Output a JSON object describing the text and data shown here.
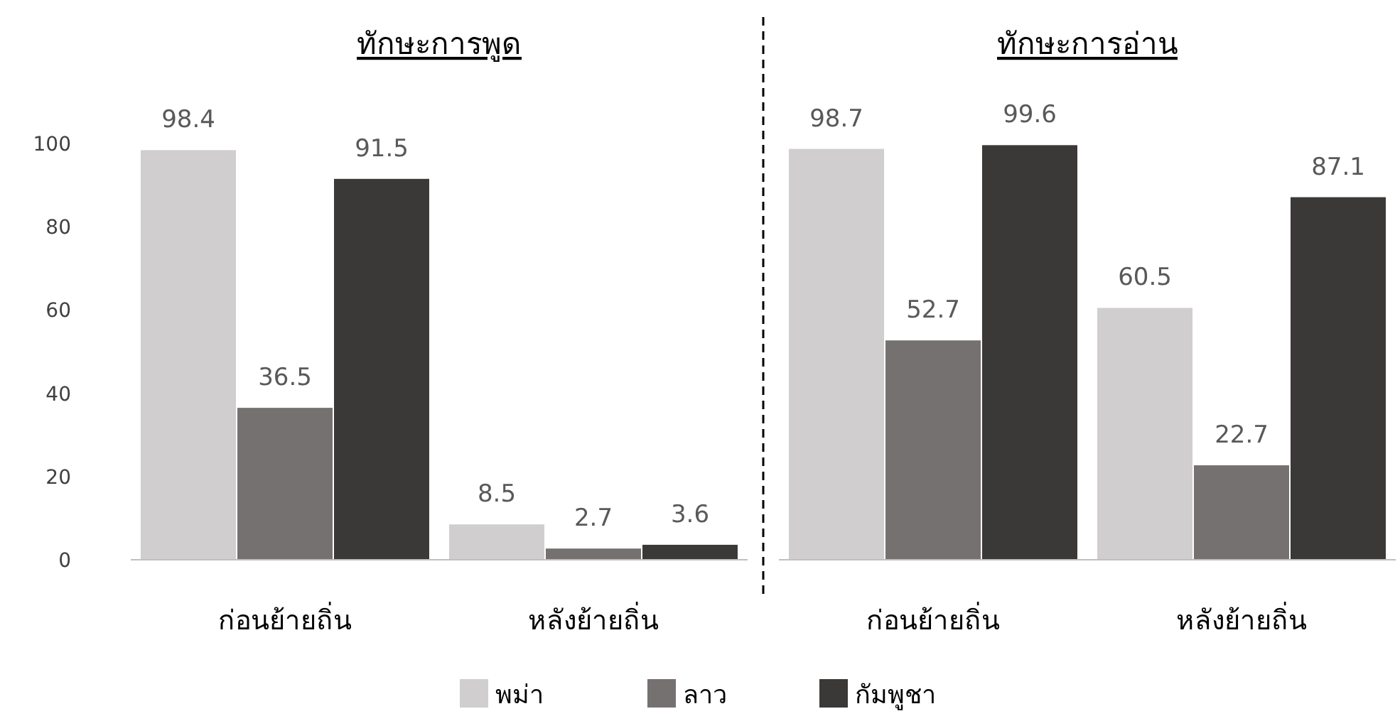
{
  "chart_data": [
    {
      "type": "bar",
      "title": "ทักษะการพูด",
      "categories": [
        "ก่อนย้ายถิ่น",
        "หลังย้ายถิ่น"
      ],
      "series": [
        {
          "name": "พม่า",
          "color": "#d0cece",
          "values": [
            98.4,
            8.5
          ]
        },
        {
          "name": "ลาว",
          "color": "#767171",
          "values": [
            36.5,
            2.7
          ]
        },
        {
          "name": "กัมพูชา",
          "color": "#3b3838",
          "values": [
            91.5,
            3.6
          ]
        }
      ],
      "ylim": [
        0,
        100
      ],
      "yticks": [
        0,
        20,
        40,
        60,
        80,
        100
      ],
      "data_labels": true,
      "legend": "bottom",
      "grid": false
    },
    {
      "type": "bar",
      "title": "ทักษะการอ่าน",
      "categories": [
        "ก่อนย้ายถิ่น",
        "หลังย้ายถิ่น"
      ],
      "series": [
        {
          "color": "#d0cece",
          "values": [
            98.7,
            60.5
          ]
        },
        {
          "color": "#767171",
          "values": [
            52.7,
            22.7
          ]
        },
        {
          "color": "#3b3838",
          "values": [
            99.6,
            87.1
          ]
        }
      ],
      "ylim": [
        0,
        100
      ],
      "tick_labels": "x",
      "data_labels": true,
      "legend": false,
      "grid": false
    }
  ]
}
